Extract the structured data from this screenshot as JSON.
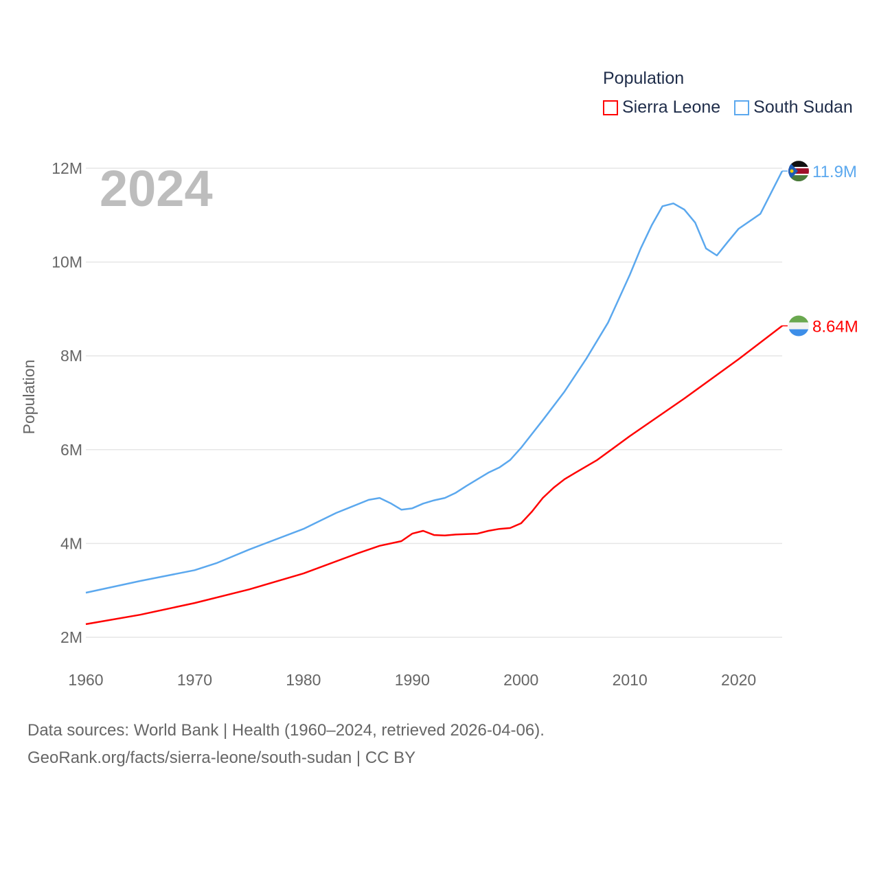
{
  "chart_data": {
    "type": "line",
    "title": "",
    "year_label": "2024",
    "xlabel": "",
    "ylabel": "Population",
    "xlim": [
      1960,
      2024
    ],
    "ylim": [
      2000000,
      12000000
    ],
    "x_ticks": [
      1960,
      1970,
      1980,
      1990,
      2000,
      2010,
      2020
    ],
    "x_tick_labels": [
      "1960",
      "1970",
      "1980",
      "1990",
      "2000",
      "2010",
      "2020"
    ],
    "y_ticks": [
      2000000,
      4000000,
      6000000,
      8000000,
      10000000,
      12000000
    ],
    "y_tick_labels": [
      "2M",
      "4M",
      "6M",
      "8M",
      "10M",
      "12M"
    ],
    "grid": true,
    "legend": {
      "title": "Population",
      "placement": "top-right"
    },
    "series": [
      {
        "name": "Sierra Leone",
        "color": "#ff0000",
        "end_label": "8.64M",
        "flag": "sierra-leone-flag",
        "points": [
          [
            1960,
            2.28
          ],
          [
            1965,
            2.48
          ],
          [
            1970,
            2.73
          ],
          [
            1975,
            3.02
          ],
          [
            1980,
            3.36
          ],
          [
            1985,
            3.79
          ],
          [
            1987,
            3.95
          ],
          [
            1989,
            4.05
          ],
          [
            1990,
            4.21
          ],
          [
            1991,
            4.27
          ],
          [
            1992,
            4.18
          ],
          [
            1993,
            4.17
          ],
          [
            1994,
            4.19
          ],
          [
            1995,
            4.2
          ],
          [
            1996,
            4.21
          ],
          [
            1997,
            4.27
          ],
          [
            1998,
            4.31
          ],
          [
            1999,
            4.33
          ],
          [
            2000,
            4.43
          ],
          [
            2001,
            4.68
          ],
          [
            2002,
            4.97
          ],
          [
            2003,
            5.19
          ],
          [
            2004,
            5.37
          ],
          [
            2005,
            5.51
          ],
          [
            2007,
            5.78
          ],
          [
            2010,
            6.29
          ],
          [
            2015,
            7.09
          ],
          [
            2020,
            7.93
          ],
          [
            2024,
            8.64
          ]
        ]
      },
      {
        "name": "South Sudan",
        "color": "#5ba8ee",
        "end_label": "11.9M",
        "flag": "south-sudan-flag",
        "points": [
          [
            1960,
            2.95
          ],
          [
            1965,
            3.2
          ],
          [
            1970,
            3.43
          ],
          [
            1972,
            3.58
          ],
          [
            1975,
            3.87
          ],
          [
            1980,
            4.31
          ],
          [
            1983,
            4.65
          ],
          [
            1986,
            4.93
          ],
          [
            1987,
            4.97
          ],
          [
            1988,
            4.86
          ],
          [
            1989,
            4.72
          ],
          [
            1990,
            4.75
          ],
          [
            1991,
            4.85
          ],
          [
            1992,
            4.92
          ],
          [
            1993,
            4.97
          ],
          [
            1994,
            5.08
          ],
          [
            1995,
            5.23
          ],
          [
            1996,
            5.37
          ],
          [
            1997,
            5.51
          ],
          [
            1998,
            5.62
          ],
          [
            1999,
            5.78
          ],
          [
            2000,
            6.04
          ],
          [
            2002,
            6.63
          ],
          [
            2004,
            7.24
          ],
          [
            2006,
            7.94
          ],
          [
            2008,
            8.71
          ],
          [
            2010,
            9.73
          ],
          [
            2011,
            10.29
          ],
          [
            2012,
            10.78
          ],
          [
            2013,
            11.19
          ],
          [
            2014,
            11.25
          ],
          [
            2015,
            11.12
          ],
          [
            2016,
            10.84
          ],
          [
            2017,
            10.29
          ],
          [
            2018,
            10.14
          ],
          [
            2019,
            10.43
          ],
          [
            2020,
            10.71
          ],
          [
            2022,
            11.03
          ],
          [
            2024,
            11.94
          ]
        ]
      }
    ]
  },
  "footer": {
    "line1": "Data sources: World Bank | Health (1960–2024, retrieved 2026-04-06).",
    "line2": "GeoRank.org/facts/sierra-leone/south-sudan | CC BY"
  }
}
